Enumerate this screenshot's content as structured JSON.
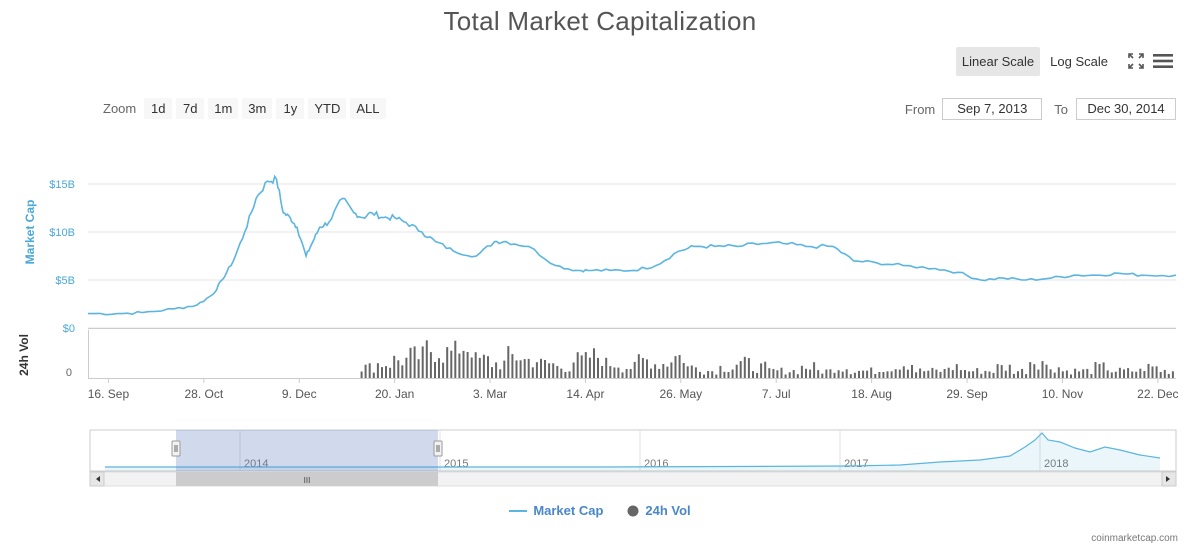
{
  "header": {
    "title": "Total Market Capitalization",
    "scale_linear": "Linear Scale",
    "scale_log": "Log Scale"
  },
  "zoom": {
    "label": "Zoom",
    "buttons": [
      "1d",
      "7d",
      "1m",
      "3m",
      "1y",
      "YTD",
      "ALL"
    ]
  },
  "range": {
    "from_label": "From",
    "from_value": "Sep 7, 2013",
    "to_label": "To",
    "to_value": "Dec 30, 2014"
  },
  "legend": {
    "market_cap": "Market Cap",
    "volume": "24h Vol"
  },
  "credit": "coinmarketcap.com",
  "colors": {
    "line": "#5bb5e0",
    "volume": "#666666",
    "nav_fill": "#d0d8ee"
  },
  "chart_data": {
    "type": "line",
    "title": "Total Market Capitalization",
    "ylabel": "Market Cap",
    "volume_label": "24h Vol",
    "ylim": [
      0,
      15
    ],
    "y_unit": "B USD",
    "y_ticks": [
      "$0",
      "$5B",
      "$10B",
      "$15B"
    ],
    "volume_ticks": [
      "0"
    ],
    "x_range": [
      "2013-09-07",
      "2014-12-30"
    ],
    "x_ticks": [
      "16. Sep",
      "28. Oct",
      "9. Dec",
      "20. Jan",
      "3. Mar",
      "14. Apr",
      "26. May",
      "7. Jul",
      "18. Aug",
      "29. Sep",
      "10. Nov",
      "22. Dec"
    ],
    "grid": true,
    "legend": "bottom-center",
    "series": [
      {
        "name": "Market Cap",
        "x": [
          "2013-09-07",
          "2013-09-20",
          "2013-10-01",
          "2013-10-15",
          "2013-10-25",
          "2013-11-01",
          "2013-11-05",
          "2013-11-10",
          "2013-11-15",
          "2013-11-20",
          "2013-11-25",
          "2013-11-29",
          "2013-12-02",
          "2013-12-05",
          "2013-12-08",
          "2013-12-12",
          "2013-12-15",
          "2013-12-18",
          "2013-12-22",
          "2013-12-28",
          "2014-01-02",
          "2014-01-06",
          "2014-01-10",
          "2014-01-15",
          "2014-01-20",
          "2014-01-25",
          "2014-02-01",
          "2014-02-07",
          "2014-02-15",
          "2014-02-25",
          "2014-03-05",
          "2014-03-10",
          "2014-03-20",
          "2014-04-01",
          "2014-04-10",
          "2014-04-15",
          "2014-04-25",
          "2014-05-05",
          "2014-05-15",
          "2014-05-25",
          "2014-06-01",
          "2014-06-10",
          "2014-06-20",
          "2014-07-01",
          "2014-07-10",
          "2014-07-20",
          "2014-08-01",
          "2014-08-10",
          "2014-08-20",
          "2014-09-01",
          "2014-09-15",
          "2014-09-25",
          "2014-10-05",
          "2014-10-15",
          "2014-10-25",
          "2014-11-05",
          "2014-11-15",
          "2014-11-25",
          "2014-12-05",
          "2014-12-15",
          "2014-12-30"
        ],
        "values": [
          1.5,
          1.5,
          1.6,
          2.0,
          2.4,
          3.5,
          5.0,
          7.0,
          10.0,
          13.5,
          15.3,
          15.5,
          12.0,
          11.5,
          10.5,
          7.5,
          9.0,
          10.5,
          11.0,
          13.5,
          12.0,
          11.5,
          12.0,
          11.5,
          11.5,
          11.0,
          10.0,
          9.0,
          8.0,
          7.5,
          9.0,
          9.0,
          8.5,
          6.5,
          6.0,
          6.0,
          6.0,
          6.0,
          6.5,
          8.0,
          8.5,
          8.5,
          8.5,
          8.8,
          8.8,
          8.5,
          8.5,
          7.0,
          6.8,
          6.5,
          6.2,
          5.8,
          5.0,
          5.2,
          5.0,
          5.2,
          5.5,
          5.5,
          5.7,
          5.5,
          5.5
        ]
      },
      {
        "name": "24h Vol",
        "type": "bar",
        "note": "relative volume bars, axis shows only 0",
        "x_start": "2014-01-05",
        "relative_values": [
          0.3,
          0.4,
          0.5,
          0.6,
          0.8,
          0.7,
          0.9,
          0.5,
          0.4,
          0.6,
          0.5,
          0.4,
          0.3,
          0.5,
          0.6,
          0.4,
          0.3,
          0.5,
          0.4,
          0.6,
          0.3,
          0.2,
          0.3,
          0.4,
          0.3,
          0.2,
          0.2,
          0.3,
          0.2,
          0.3,
          0.2,
          0.2,
          0.3,
          0.4,
          0.2,
          0.2,
          0.3,
          0.2,
          0.2,
          0.3,
          0.2,
          0.5,
          0.3,
          0.2,
          0.2,
          0.3,
          0.2,
          0.2,
          0.3,
          0.2
        ]
      }
    ]
  },
  "navigator": {
    "years": [
      "2014",
      "2015",
      "2016",
      "2017",
      "2018"
    ],
    "scroll_grip": "III"
  }
}
